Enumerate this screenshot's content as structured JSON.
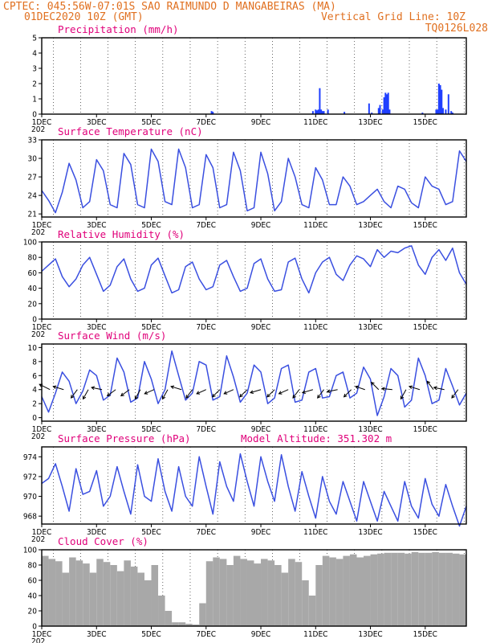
{
  "header": {
    "line1": "CPTEC:  045:56W-07:01S  SAO RAIMUNDO D MANGABEIRAS (MA)",
    "date": "01DEC2020 10Z (GMT)",
    "grid_note": "Vertical Grid Line: 10Z",
    "code": "TQ0126L028"
  },
  "colors": {
    "line": "#3a4fe0",
    "bar": "#1f3fff",
    "cloud": "#a8a8a8",
    "header": "#e07020",
    "title": "#e0007a",
    "arrow": "#000000"
  },
  "x_axis": {
    "ticks": [
      "1DEC",
      "3DEC",
      "5DEC",
      "7DEC",
      "9DEC",
      "11DEC",
      "13DEC",
      "15DEC"
    ],
    "tick_positions_days": [
      0,
      2,
      4,
      6,
      8,
      10,
      12,
      14
    ],
    "year_fragment": "202",
    "range_days": [
      0,
      15.5
    ],
    "grid_days": [
      0.42,
      1.42,
      2.42,
      3.42,
      4.42,
      5.42,
      6.42,
      7.42,
      8.42,
      9.42,
      10.42,
      11.42,
      12.42,
      13.42,
      14.42,
      15.42
    ]
  },
  "panels": {
    "precip": {
      "title": "Precipitation (mm/h)",
      "yticks": [
        "0",
        "1",
        "2",
        "3",
        "4",
        "5"
      ]
    },
    "temp": {
      "title": "Surface Temperature (nC)",
      "yticks": [
        "21",
        "24",
        "27",
        "30",
        "33"
      ]
    },
    "rh": {
      "title": "Relative Humidity (%)",
      "yticks": [
        "0",
        "20",
        "40",
        "60",
        "80",
        "100"
      ]
    },
    "wind": {
      "title": "Surface Wind (m/s)",
      "yticks": [
        "0",
        "2",
        "4",
        "6",
        "8",
        "10"
      ]
    },
    "pres": {
      "title": "Surface Pressure (hPa)",
      "altitude": "Model Altitude: 351.302 m",
      "yticks": [
        "968",
        "970",
        "972",
        "974"
      ]
    },
    "cloud": {
      "title": "Cloud Cover (%)",
      "yticks": [
        "0",
        "20",
        "40",
        "60",
        "80",
        "100"
      ]
    }
  },
  "chart_data": [
    {
      "type": "bar",
      "title": "Precipitation (mm/h)",
      "ylim": [
        0,
        5
      ],
      "series_x_unit": "days since 01DEC2020 00Z",
      "x": [
        6.2,
        6.25,
        9.9,
        10.0,
        10.05,
        10.1,
        10.15,
        10.2,
        10.25,
        10.3,
        10.45,
        11.05,
        11.95,
        12.05,
        12.3,
        12.35,
        12.45,
        12.5,
        12.55,
        12.6,
        12.65,
        12.7,
        13.9,
        14.4,
        14.45,
        14.5,
        14.55,
        14.6,
        14.65,
        14.75,
        14.85,
        14.95,
        15.0
      ],
      "values": [
        0.2,
        0.15,
        0.2,
        0.3,
        0.25,
        0.3,
        1.7,
        0.3,
        0.2,
        0.2,
        0.3,
        0.15,
        0.7,
        0.1,
        0.4,
        0.6,
        0.3,
        1.1,
        1.4,
        1.3,
        1.4,
        0.3,
        0.1,
        0.3,
        0.3,
        2.0,
        1.9,
        1.6,
        0.4,
        0.3,
        1.3,
        0.2,
        0.1
      ]
    },
    {
      "type": "line",
      "title": "Surface Temperature (nC)",
      "ylim": [
        20.5,
        33
      ],
      "x": [
        0.0,
        0.25,
        0.5,
        0.75,
        1.0,
        1.25,
        1.5,
        1.75,
        2.0,
        2.25,
        2.5,
        2.75,
        3.0,
        3.25,
        3.5,
        3.75,
        4.0,
        4.25,
        4.5,
        4.75,
        5.0,
        5.25,
        5.5,
        5.75,
        6.0,
        6.25,
        6.5,
        6.75,
        7.0,
        7.25,
        7.5,
        7.75,
        8.0,
        8.25,
        8.5,
        8.75,
        9.0,
        9.25,
        9.5,
        9.75,
        10.0,
        10.25,
        10.5,
        10.75,
        11.0,
        11.25,
        11.5,
        11.75,
        12.0,
        12.25,
        12.5,
        12.75,
        13.0,
        13.25,
        13.5,
        13.75,
        14.0,
        14.25,
        14.5,
        14.75,
        15.0,
        15.25,
        15.5
      ],
      "values": [
        24.8,
        23.2,
        21.2,
        24.5,
        29.2,
        26.5,
        22.0,
        23.0,
        29.8,
        28.0,
        22.5,
        22.0,
        30.8,
        29.0,
        22.5,
        22.0,
        31.5,
        29.5,
        23.0,
        22.5,
        31.5,
        28.5,
        22.0,
        22.5,
        30.6,
        28.5,
        22.0,
        22.5,
        31.0,
        28.0,
        21.5,
        22.0,
        31.0,
        27.5,
        21.5,
        23.0,
        30.0,
        27.0,
        22.5,
        22.0,
        28.5,
        26.5,
        22.5,
        22.5,
        27.0,
        25.5,
        22.5,
        23.0,
        24.0,
        25.0,
        23.0,
        22.0,
        25.5,
        25.0,
        22.8,
        22.0,
        27.0,
        25.5,
        25.0,
        22.5,
        23.0,
        31.2,
        29.5
      ]
    },
    {
      "type": "line",
      "title": "Relative Humidity (%)",
      "ylim": [
        0,
        100
      ],
      "x": [
        0.0,
        0.25,
        0.5,
        0.75,
        1.0,
        1.25,
        1.5,
        1.75,
        2.0,
        2.25,
        2.5,
        2.75,
        3.0,
        3.25,
        3.5,
        3.75,
        4.0,
        4.25,
        4.5,
        4.75,
        5.0,
        5.25,
        5.5,
        5.75,
        6.0,
        6.25,
        6.5,
        6.75,
        7.0,
        7.25,
        7.5,
        7.75,
        8.0,
        8.25,
        8.5,
        8.75,
        9.0,
        9.25,
        9.5,
        9.75,
        10.0,
        10.25,
        10.5,
        10.75,
        11.0,
        11.25,
        11.5,
        11.75,
        12.0,
        12.25,
        12.5,
        12.75,
        13.0,
        13.25,
        13.5,
        13.75,
        14.0,
        14.25,
        14.5,
        14.75,
        15.0,
        15.25,
        15.5
      ],
      "values": [
        62,
        70,
        78,
        55,
        42,
        52,
        70,
        80,
        58,
        36,
        44,
        68,
        78,
        52,
        36,
        40,
        70,
        79,
        56,
        34,
        38,
        68,
        74,
        52,
        38,
        42,
        70,
        76,
        55,
        36,
        40,
        72,
        78,
        52,
        36,
        38,
        74,
        79,
        52,
        34,
        60,
        74,
        80,
        58,
        50,
        70,
        82,
        78,
        68,
        90,
        80,
        88,
        86,
        92,
        95,
        70,
        58,
        80,
        90,
        76,
        92,
        60,
        45
      ]
    },
    {
      "type": "line",
      "title": "Surface Wind (m/s)",
      "ylim": [
        -0.5,
        10.5
      ],
      "x": [
        0.0,
        0.25,
        0.5,
        0.75,
        1.0,
        1.25,
        1.5,
        1.75,
        2.0,
        2.25,
        2.5,
        2.75,
        3.0,
        3.25,
        3.5,
        3.75,
        4.0,
        4.25,
        4.5,
        4.75,
        5.0,
        5.25,
        5.5,
        5.75,
        6.0,
        6.25,
        6.5,
        6.75,
        7.0,
        7.25,
        7.5,
        7.75,
        8.0,
        8.25,
        8.5,
        8.75,
        9.0,
        9.25,
        9.5,
        9.75,
        10.0,
        10.25,
        10.5,
        10.75,
        11.0,
        11.25,
        11.5,
        11.75,
        12.0,
        12.25,
        12.5,
        12.75,
        13.0,
        13.25,
        13.5,
        13.75,
        14.0,
        14.25,
        14.5,
        14.75,
        15.0,
        15.25,
        15.5
      ],
      "values": [
        3.0,
        0.8,
        3.5,
        6.5,
        5.2,
        2.0,
        3.8,
        6.8,
        6.0,
        2.5,
        3.2,
        8.5,
        6.5,
        2.2,
        2.8,
        8.0,
        5.5,
        2.0,
        4.0,
        9.5,
        6.0,
        2.5,
        3.5,
        8.0,
        7.5,
        2.5,
        3.0,
        8.8,
        5.8,
        2.2,
        3.5,
        7.5,
        6.5,
        2.0,
        2.8,
        7.0,
        7.5,
        2.2,
        2.5,
        6.5,
        7.0,
        2.8,
        3.0,
        6.0,
        6.5,
        2.8,
        3.5,
        7.2,
        5.5,
        0.3,
        3.0,
        7.0,
        6.0,
        1.5,
        2.5,
        8.5,
        6.0,
        2.0,
        2.5,
        7.0,
        4.5,
        1.8,
        3.5
      ],
      "direction_arrows": [
        {
          "x": 0.3,
          "u": -1,
          "v": 0.5
        },
        {
          "x": 0.8,
          "u": -1,
          "v": 0.3
        },
        {
          "x": 1.3,
          "u": -0.6,
          "v": -0.8
        },
        {
          "x": 1.7,
          "u": -0.5,
          "v": -0.9
        },
        {
          "x": 2.2,
          "u": -1,
          "v": 0.2
        },
        {
          "x": 2.7,
          "u": -0.8,
          "v": -0.6
        },
        {
          "x": 3.2,
          "u": -0.8,
          "v": -0.6
        },
        {
          "x": 3.6,
          "u": -0.5,
          "v": -0.9
        },
        {
          "x": 4.1,
          "u": -0.9,
          "v": -0.4
        },
        {
          "x": 4.6,
          "u": -0.5,
          "v": -0.9
        },
        {
          "x": 5.1,
          "u": -1,
          "v": 0.3
        },
        {
          "x": 5.5,
          "u": -0.6,
          "v": -0.8
        },
        {
          "x": 6.0,
          "u": -0.9,
          "v": -0.4
        },
        {
          "x": 6.5,
          "u": -0.7,
          "v": -0.7
        },
        {
          "x": 7.0,
          "u": -0.9,
          "v": -0.4
        },
        {
          "x": 7.5,
          "u": -0.7,
          "v": -0.7
        },
        {
          "x": 8.0,
          "u": -1,
          "v": -0.3
        },
        {
          "x": 8.5,
          "u": -0.7,
          "v": -0.7
        },
        {
          "x": 9.0,
          "u": -0.9,
          "v": -0.4
        },
        {
          "x": 9.4,
          "u": -0.6,
          "v": -0.8
        },
        {
          "x": 9.9,
          "u": -1,
          "v": -0.3
        },
        {
          "x": 10.3,
          "u": -0.6,
          "v": -0.8
        },
        {
          "x": 10.8,
          "u": -1,
          "v": -0.2
        },
        {
          "x": 11.3,
          "u": -0.7,
          "v": -0.7
        },
        {
          "x": 11.8,
          "u": -0.9,
          "v": 0.3
        },
        {
          "x": 12.3,
          "u": -0.7,
          "v": 0.7
        },
        {
          "x": 12.8,
          "u": -1,
          "v": 0.1
        },
        {
          "x": 13.3,
          "u": -0.5,
          "v": -0.9
        },
        {
          "x": 13.8,
          "u": -1,
          "v": 0.3
        },
        {
          "x": 14.3,
          "u": -0.6,
          "v": 0.8
        },
        {
          "x": 14.7,
          "u": -1,
          "v": 0.2
        },
        {
          "x": 15.2,
          "u": -0.6,
          "v": -0.8
        }
      ]
    },
    {
      "type": "line",
      "title": "Surface Pressure (hPa)",
      "ylim": [
        967.2,
        975
      ],
      "x": [
        0.0,
        0.25,
        0.5,
        0.75,
        1.0,
        1.25,
        1.5,
        1.75,
        2.0,
        2.25,
        2.5,
        2.75,
        3.0,
        3.25,
        3.5,
        3.75,
        4.0,
        4.25,
        4.5,
        4.75,
        5.0,
        5.25,
        5.5,
        5.75,
        6.0,
        6.25,
        6.5,
        6.75,
        7.0,
        7.25,
        7.5,
        7.75,
        8.0,
        8.25,
        8.5,
        8.75,
        9.0,
        9.25,
        9.5,
        9.75,
        10.0,
        10.25,
        10.5,
        10.75,
        11.0,
        11.25,
        11.5,
        11.75,
        12.0,
        12.25,
        12.5,
        12.75,
        13.0,
        13.25,
        13.5,
        13.75,
        14.0,
        14.25,
        14.5,
        14.75,
        15.0,
        15.25,
        15.5
      ],
      "values": [
        971.3,
        971.8,
        973.3,
        971.0,
        968.5,
        972.8,
        970.2,
        970.5,
        972.6,
        969.0,
        970.0,
        973.0,
        970.5,
        968.2,
        973.2,
        970.0,
        969.5,
        973.8,
        970.5,
        968.5,
        973.0,
        970.0,
        969.0,
        974.0,
        971.0,
        968.2,
        973.5,
        971.0,
        969.5,
        974.3,
        971.5,
        969.0,
        974.0,
        971.5,
        969.5,
        974.2,
        971.0,
        968.5,
        972.5,
        970.0,
        967.8,
        972.0,
        969.5,
        968.2,
        971.5,
        969.5,
        967.5,
        971.5,
        969.5,
        967.5,
        970.5,
        969.0,
        967.5,
        971.5,
        969.0,
        967.8,
        971.8,
        969.2,
        968.0,
        971.2,
        969.0,
        967.0,
        969.0
      ]
    },
    {
      "type": "area",
      "title": "Cloud Cover (%)",
      "ylim": [
        0,
        100
      ],
      "x": [
        0.0,
        0.25,
        0.5,
        0.75,
        1.0,
        1.25,
        1.5,
        1.75,
        2.0,
        2.25,
        2.5,
        2.75,
        3.0,
        3.25,
        3.5,
        3.75,
        4.0,
        4.25,
        4.5,
        4.75,
        5.0,
        5.25,
        5.5,
        5.75,
        6.0,
        6.25,
        6.5,
        6.75,
        7.0,
        7.25,
        7.5,
        7.75,
        8.0,
        8.25,
        8.5,
        8.75,
        9.0,
        9.25,
        9.5,
        9.75,
        10.0,
        10.25,
        10.5,
        10.75,
        11.0,
        11.25,
        11.5,
        11.75,
        12.0,
        12.25,
        12.5,
        12.75,
        13.0,
        13.25,
        13.5,
        13.75,
        14.0,
        14.25,
        14.5,
        14.75,
        15.0,
        15.25,
        15.5
      ],
      "values": [
        92,
        88,
        85,
        70,
        90,
        86,
        82,
        70,
        88,
        84,
        80,
        72,
        86,
        78,
        70,
        60,
        80,
        40,
        20,
        5,
        5,
        3,
        2,
        30,
        85,
        90,
        88,
        80,
        92,
        88,
        86,
        82,
        88,
        86,
        80,
        70,
        88,
        84,
        60,
        40,
        80,
        92,
        90,
        88,
        92,
        94,
        90,
        92,
        94,
        95,
        96,
        96,
        96,
        95,
        97,
        96,
        96,
        97,
        96,
        96,
        95,
        94,
        95
      ]
    }
  ]
}
